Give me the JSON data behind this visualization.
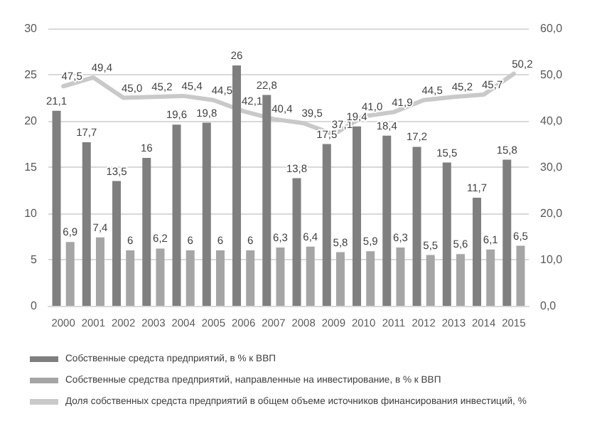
{
  "chart_data": {
    "type": "bar",
    "categories": [
      "2000",
      "2001",
      "2002",
      "2003",
      "2004",
      "2005",
      "2006",
      "2007",
      "2008",
      "2009",
      "2010",
      "2011",
      "2012",
      "2013",
      "2014",
      "2015"
    ],
    "series": [
      {
        "name": "Собственные средста предприятий, в % к ВВП",
        "color": "#7f7f7f",
        "values": [
          21.1,
          17.7,
          13.5,
          16,
          19.6,
          19.8,
          26,
          22.8,
          13.8,
          17.5,
          19.4,
          18.4,
          17.2,
          15.5,
          11.7,
          15.8
        ],
        "value_labels": [
          "21,1",
          "17,7",
          "13,5",
          "16",
          "19,6",
          "19,8",
          "26",
          "22,8",
          "13,8",
          "17,5",
          "19,4",
          "18,4",
          "17,2",
          "15,5",
          "11,7",
          "15,8"
        ]
      },
      {
        "name": "Собственные средства предприятий, направленные на инвестирование, в % к ВВП",
        "color": "#a5a5a5",
        "values": [
          6.9,
          7.4,
          6,
          6.2,
          6,
          6,
          6,
          6.3,
          6.4,
          5.8,
          5.9,
          6.3,
          5.5,
          5.6,
          6.1,
          6.5
        ],
        "value_labels": [
          "6,9",
          "7,4",
          "6",
          "6,2",
          "6",
          "6",
          "6",
          "6,3",
          "6,4",
          "5,8",
          "5,9",
          "6,3",
          "5,5",
          "5,6",
          "6,1",
          "6,5"
        ]
      },
      {
        "name": "Доля собственных средста предприятий в общем объеме источников финансирования инвестиций, %",
        "type": "line",
        "axis": "y2",
        "color": "#c9c9c9",
        "values": [
          47.5,
          49.4,
          45.0,
          45.2,
          45.4,
          44.5,
          42.1,
          40.4,
          39.5,
          37.1,
          41.0,
          41.9,
          44.5,
          45.2,
          45.7,
          50.2
        ],
        "value_labels": [
          "47,5",
          "49,4",
          "45,0",
          "45,2",
          "45,4",
          "44,5",
          "42,1",
          "40,4",
          "39,5",
          "37,1",
          "41,0",
          "41,9",
          "44,5",
          "45,2",
          "45,7",
          "50,2"
        ]
      }
    ],
    "ylim": [
      0,
      30
    ],
    "yticks": [
      0,
      5,
      10,
      15,
      20,
      25,
      30
    ],
    "y2lim": [
      0,
      60
    ],
    "y2ticks": [
      {
        "value": 0,
        "label": "0,0"
      },
      {
        "value": 10,
        "label": "10,0"
      },
      {
        "value": 20,
        "label": "20,0"
      },
      {
        "value": 30,
        "label": "30,0"
      },
      {
        "value": 40,
        "label": "40,0"
      },
      {
        "value": 50,
        "label": "50,0"
      },
      {
        "value": 60,
        "label": "60,0"
      }
    ],
    "grid": "y",
    "legend": "bottom",
    "marker": "none",
    "line_style": "solid"
  }
}
